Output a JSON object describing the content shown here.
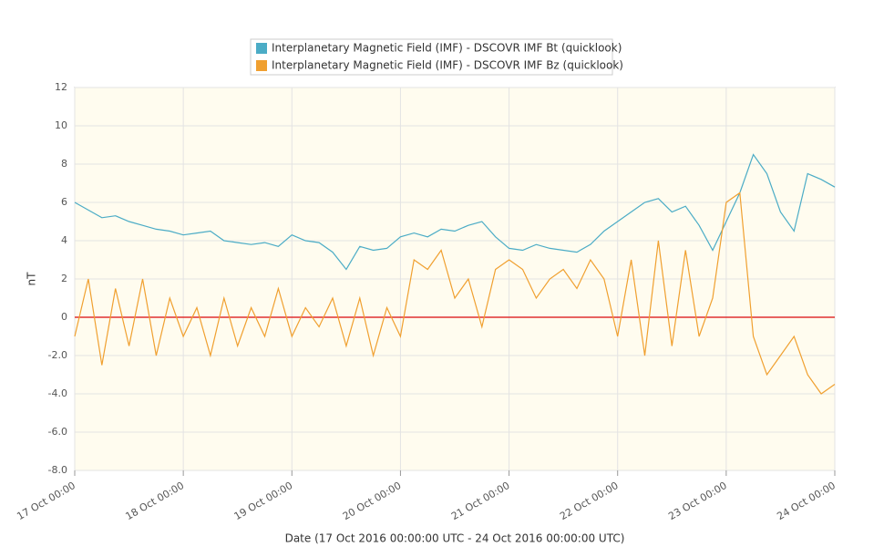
{
  "chart_data": {
    "type": "line",
    "xlabel": "Date (17 Oct 2016 00:00:00 UTC - 24 Oct 2016 00:00:00 UTC)",
    "ylabel": "nT",
    "x": [
      "17 Oct 00:00",
      "17 Oct 03:00",
      "17 Oct 06:00",
      "17 Oct 09:00",
      "17 Oct 12:00",
      "17 Oct 15:00",
      "17 Oct 18:00",
      "17 Oct 21:00",
      "18 Oct 00:00",
      "18 Oct 03:00",
      "18 Oct 06:00",
      "18 Oct 09:00",
      "18 Oct 12:00",
      "18 Oct 15:00",
      "18 Oct 18:00",
      "18 Oct 21:00",
      "19 Oct 00:00",
      "19 Oct 03:00",
      "19 Oct 06:00",
      "19 Oct 09:00",
      "19 Oct 12:00",
      "19 Oct 15:00",
      "19 Oct 18:00",
      "19 Oct 21:00",
      "20 Oct 00:00",
      "20 Oct 03:00",
      "20 Oct 06:00",
      "20 Oct 09:00",
      "20 Oct 12:00",
      "20 Oct 15:00",
      "20 Oct 18:00",
      "20 Oct 21:00",
      "21 Oct 00:00",
      "21 Oct 03:00",
      "21 Oct 06:00",
      "21 Oct 09:00",
      "21 Oct 12:00",
      "21 Oct 15:00",
      "21 Oct 18:00",
      "21 Oct 21:00",
      "22 Oct 00:00",
      "22 Oct 03:00",
      "22 Oct 06:00",
      "22 Oct 09:00",
      "22 Oct 12:00",
      "22 Oct 15:00",
      "22 Oct 18:00",
      "22 Oct 21:00",
      "23 Oct 00:00",
      "23 Oct 03:00",
      "23 Oct 06:00",
      "23 Oct 09:00",
      "23 Oct 12:00",
      "23 Oct 15:00",
      "23 Oct 18:00",
      "23 Oct 21:00",
      "24 Oct 00:00"
    ],
    "series": [
      {
        "name": "Interplanetary Magnetic Field (IMF) - DSCOVR IMF Bt (quicklook)",
        "color": "#4bacc6",
        "values": [
          6.0,
          5.6,
          5.2,
          5.3,
          5.0,
          4.8,
          4.6,
          4.5,
          4.3,
          4.4,
          4.5,
          4.0,
          3.9,
          3.8,
          3.9,
          3.7,
          4.3,
          4.0,
          3.9,
          3.4,
          2.5,
          3.7,
          3.5,
          3.6,
          4.2,
          4.4,
          4.2,
          4.6,
          4.5,
          4.8,
          5.0,
          4.2,
          3.6,
          3.5,
          3.8,
          3.6,
          3.5,
          3.4,
          3.8,
          4.5,
          5.0,
          5.5,
          6.0,
          6.2,
          5.5,
          5.8,
          4.8,
          3.5,
          5.0,
          6.5,
          8.5,
          7.5,
          5.5,
          4.5,
          7.5,
          7.2,
          6.8
        ]
      },
      {
        "name": "Interplanetary Magnetic Field (IMF) - DSCOVR IMF Bz (quicklook)",
        "color": "#f0a030",
        "values": [
          -1.0,
          2.0,
          -2.5,
          1.5,
          -1.5,
          2.0,
          -2.0,
          1.0,
          -1.0,
          0.5,
          -2.0,
          1.0,
          -1.5,
          0.5,
          -1.0,
          1.5,
          -1.0,
          0.5,
          -0.5,
          1.0,
          -1.5,
          1.0,
          -2.0,
          0.5,
          -1.0,
          3.0,
          2.5,
          3.5,
          1.0,
          2.0,
          -0.5,
          2.5,
          3.0,
          2.5,
          1.0,
          2.0,
          2.5,
          1.5,
          3.0,
          2.0,
          -1.0,
          3.0,
          -2.0,
          4.0,
          -1.5,
          3.5,
          -1.0,
          1.0,
          6.0,
          6.5,
          -1.0,
          -3.0,
          -2.0,
          -1.0,
          -3.0,
          -4.0,
          -3.5
        ]
      }
    ],
    "xlim": [
      "17 Oct 00:00",
      "24 Oct 00:00"
    ],
    "xticks": [
      "17 Oct 00:00",
      "18 Oct 00:00",
      "19 Oct 00:00",
      "20 Oct 00:00",
      "21 Oct 00:00",
      "22 Oct 00:00",
      "23 Oct 00:00",
      "24 Oct 00:00"
    ],
    "ylim": [
      -8,
      12
    ],
    "yticks": [
      {
        "value": -8,
        "label": "-8.0"
      },
      {
        "value": -6,
        "label": "-6.0"
      },
      {
        "value": -4,
        "label": "-4.0"
      },
      {
        "value": -2,
        "label": "-2.0"
      },
      0,
      2,
      4,
      6,
      8,
      10,
      12
    ],
    "zero_line": {
      "value": 0,
      "color": "#e03030"
    },
    "grid": true,
    "legend": "top"
  }
}
